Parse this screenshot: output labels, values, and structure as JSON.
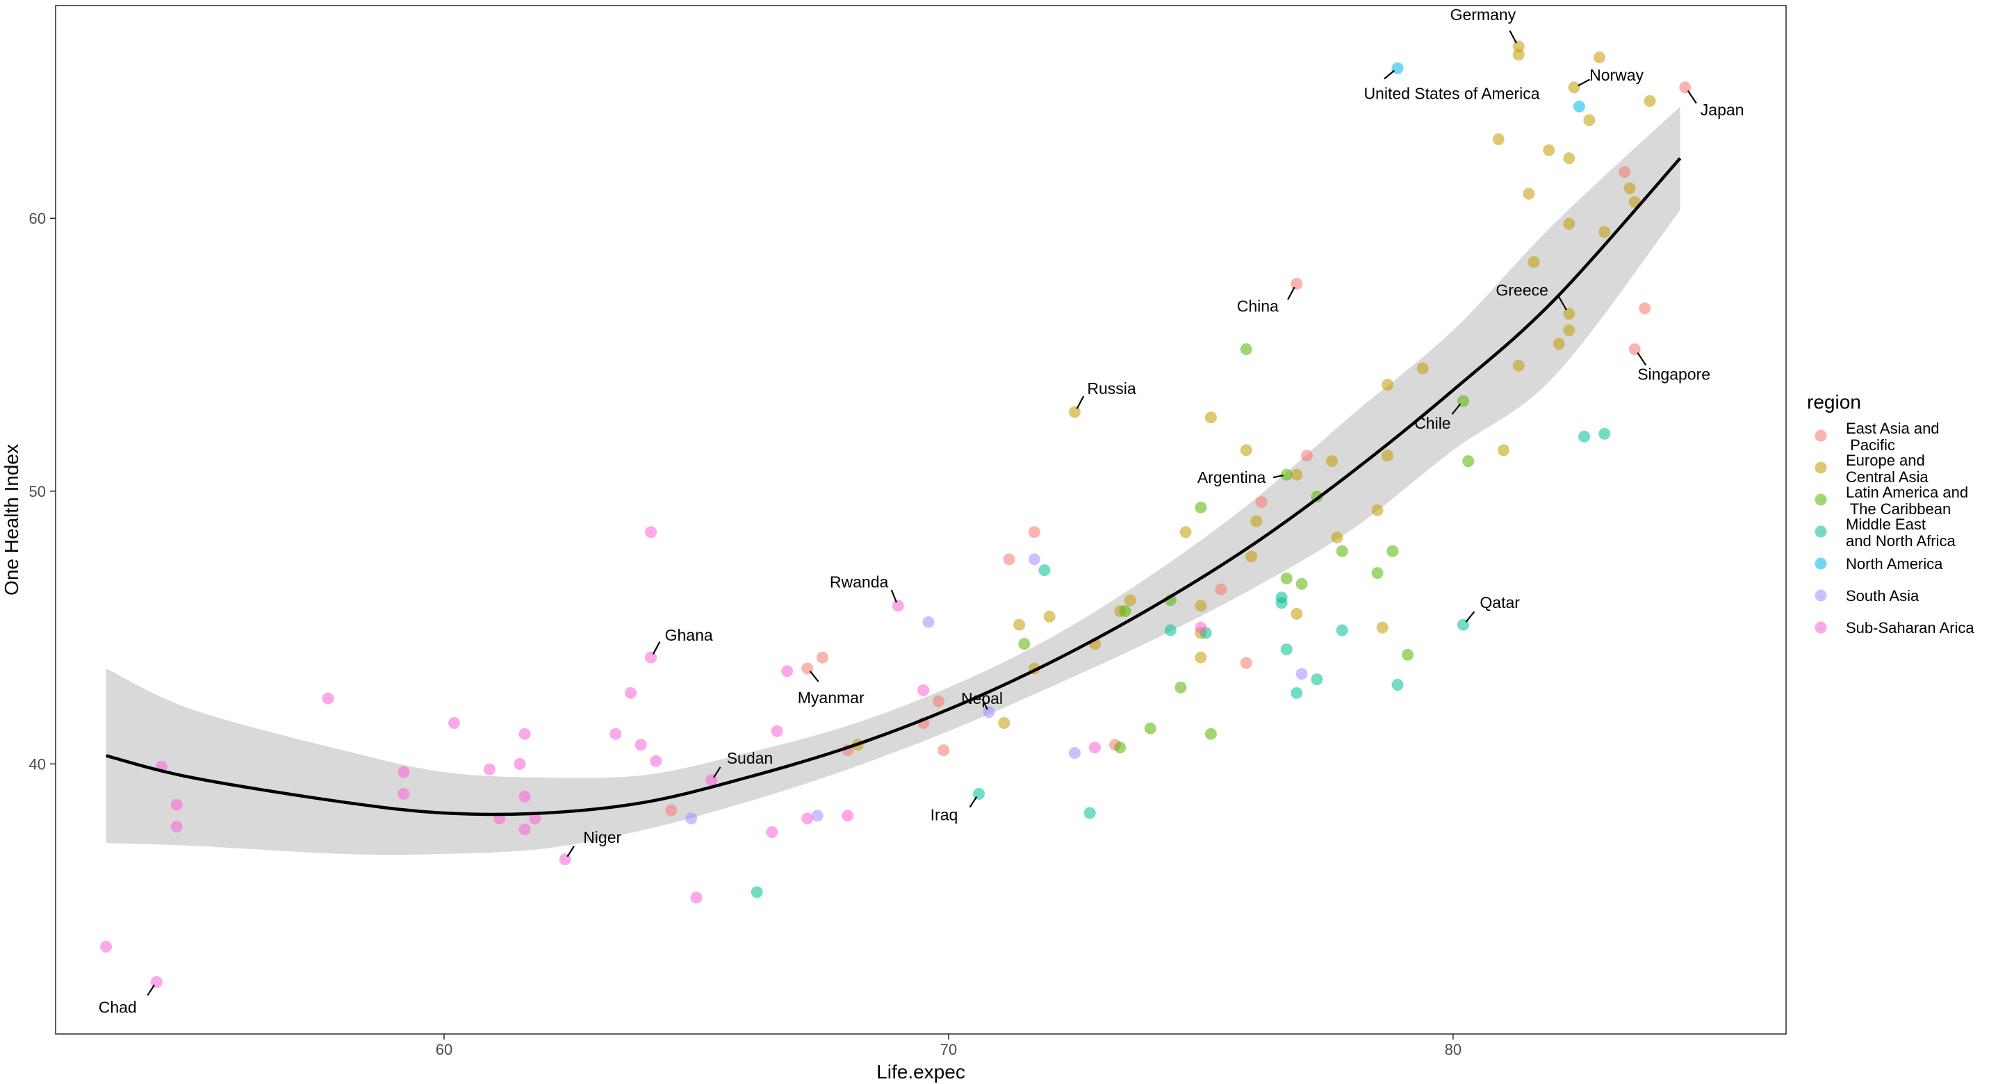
{
  "chart_data": {
    "type": "scatter",
    "title": "",
    "xlabel": "Life.expec",
    "ylabel": "One Health Index",
    "xlim": [
      52.3,
      86.6
    ],
    "ylim": [
      30.1,
      67.8
    ],
    "xticks": [
      60,
      70,
      80
    ],
    "yticks": [
      40,
      50,
      60
    ],
    "legend": {
      "title": "region",
      "placement": "right",
      "entries": [
        {
          "name": "East Asia and Pacific",
          "lines": [
            "East Asia and",
            " Pacific"
          ],
          "color": "#F8766D"
        },
        {
          "name": "Europe and Central Asia",
          "lines": [
            "Europe and",
            "Central Asia"
          ],
          "color": "#C49A00"
        },
        {
          "name": "Latin America and The Caribbean",
          "lines": [
            "Latin America and",
            " The Caribbean"
          ],
          "color": "#53B400"
        },
        {
          "name": "Middle East and North Africa",
          "lines": [
            "Middle East",
            "and North Africa"
          ],
          "color": "#00C094"
        },
        {
          "name": "North America",
          "lines": [
            "North America"
          ],
          "color": "#00B6EB"
        },
        {
          "name": "South Asia",
          "lines": [
            "South Asia"
          ],
          "color": "#A58AFF"
        },
        {
          "name": "Sub-Saharan Arica",
          "lines": [
            "Sub-Saharan Arica"
          ],
          "color": "#FB61D7"
        }
      ]
    },
    "trend": {
      "type": "quadratic-fit",
      "x": [
        53.3,
        55,
        58,
        60,
        62,
        64,
        66,
        68,
        70,
        72,
        74,
        76,
        78,
        80,
        82,
        84.5
      ],
      "y": [
        40.3,
        39.5,
        38.6,
        38.2,
        38.2,
        38.6,
        39.5,
        40.6,
        42.0,
        43.7,
        45.7,
        48.0,
        50.7,
        53.7,
        57.0,
        62.2
      ],
      "ci_lower": [
        37.1,
        37.0,
        36.7,
        36.7,
        36.9,
        37.6,
        38.6,
        39.8,
        41.2,
        42.8,
        44.5,
        46.4,
        48.6,
        51.5,
        54.2,
        60.3
      ],
      "ci_upper": [
        43.5,
        42.0,
        40.5,
        39.7,
        39.5,
        39.6,
        40.4,
        41.4,
        42.8,
        44.6,
        46.9,
        49.6,
        52.8,
        55.9,
        59.8,
        64.1
      ]
    },
    "series": [
      {
        "name": "East Asia and Pacific",
        "color": "#F8766D",
        "points": [
          {
            "x": 84.6,
            "y": 64.8,
            "label": "Japan"
          },
          {
            "x": 76.9,
            "y": 57.6,
            "label": "China"
          },
          {
            "x": 83.6,
            "y": 55.2,
            "label": "Singapore"
          },
          {
            "x": 83.4,
            "y": 61.7
          },
          {
            "x": 83.8,
            "y": 56.7
          },
          {
            "x": 77.1,
            "y": 51.3
          },
          {
            "x": 76.2,
            "y": 49.6
          },
          {
            "x": 71.7,
            "y": 48.5
          },
          {
            "x": 71.2,
            "y": 47.5
          },
          {
            "x": 75.4,
            "y": 46.4
          },
          {
            "x": 75.9,
            "y": 43.7
          },
          {
            "x": 67.5,
            "y": 43.9
          },
          {
            "x": 67.2,
            "y": 43.5,
            "label": "Myanmar"
          },
          {
            "x": 69.8,
            "y": 42.3
          },
          {
            "x": 69.5,
            "y": 41.5
          },
          {
            "x": 69.9,
            "y": 40.5
          },
          {
            "x": 68.0,
            "y": 40.5
          },
          {
            "x": 64.5,
            "y": 38.3
          },
          {
            "x": 73.3,
            "y": 40.7
          }
        ]
      },
      {
        "name": "Europe and Central Asia",
        "color": "#C49A00",
        "points": [
          {
            "x": 81.3,
            "y": 66.3,
            "label": "Germany"
          },
          {
            "x": 82.4,
            "y": 64.8,
            "label": "Norway"
          },
          {
            "x": 82.3,
            "y": 56.5,
            "label": "Greece"
          },
          {
            "x": 72.5,
            "y": 52.9,
            "label": "Russia"
          },
          {
            "x": 81.3,
            "y": 66.0
          },
          {
            "x": 82.9,
            "y": 65.9
          },
          {
            "x": 83.9,
            "y": 64.3
          },
          {
            "x": 82.7,
            "y": 63.6
          },
          {
            "x": 80.9,
            "y": 62.9
          },
          {
            "x": 81.9,
            "y": 62.5
          },
          {
            "x": 82.3,
            "y": 62.2
          },
          {
            "x": 83.5,
            "y": 61.1
          },
          {
            "x": 83.6,
            "y": 60.6
          },
          {
            "x": 81.5,
            "y": 60.9
          },
          {
            "x": 82.3,
            "y": 59.8
          },
          {
            "x": 83.0,
            "y": 59.5
          },
          {
            "x": 81.6,
            "y": 58.4
          },
          {
            "x": 82.3,
            "y": 55.9
          },
          {
            "x": 82.1,
            "y": 55.4
          },
          {
            "x": 81.3,
            "y": 54.6
          },
          {
            "x": 79.4,
            "y": 54.5
          },
          {
            "x": 78.7,
            "y": 53.9
          },
          {
            "x": 75.2,
            "y": 52.7
          },
          {
            "x": 75.9,
            "y": 51.5
          },
          {
            "x": 81.0,
            "y": 51.5
          },
          {
            "x": 78.7,
            "y": 51.3
          },
          {
            "x": 77.6,
            "y": 51.1
          },
          {
            "x": 76.9,
            "y": 50.6
          },
          {
            "x": 78.5,
            "y": 49.3
          },
          {
            "x": 76.1,
            "y": 48.9
          },
          {
            "x": 74.7,
            "y": 48.5
          },
          {
            "x": 77.7,
            "y": 48.3
          },
          {
            "x": 76.0,
            "y": 47.6
          },
          {
            "x": 73.6,
            "y": 46.0
          },
          {
            "x": 75.0,
            "y": 45.8
          },
          {
            "x": 73.4,
            "y": 45.6
          },
          {
            "x": 76.9,
            "y": 45.5
          },
          {
            "x": 72.0,
            "y": 45.4
          },
          {
            "x": 71.4,
            "y": 45.1
          },
          {
            "x": 78.6,
            "y": 45.0
          },
          {
            "x": 75.0,
            "y": 44.8
          },
          {
            "x": 72.9,
            "y": 44.4
          },
          {
            "x": 75.0,
            "y": 43.9
          },
          {
            "x": 71.7,
            "y": 43.5
          },
          {
            "x": 71.1,
            "y": 41.5
          },
          {
            "x": 68.2,
            "y": 40.7
          }
        ]
      },
      {
        "name": "Latin America and The Caribbean",
        "color": "#53B400",
        "points": [
          {
            "x": 80.2,
            "y": 53.3,
            "label": "Chile"
          },
          {
            "x": 76.7,
            "y": 50.6,
            "label": "Argentina"
          },
          {
            "x": 75.9,
            "y": 55.2
          },
          {
            "x": 80.3,
            "y": 51.1
          },
          {
            "x": 77.3,
            "y": 49.8
          },
          {
            "x": 75.0,
            "y": 49.4
          },
          {
            "x": 77.8,
            "y": 47.8
          },
          {
            "x": 78.8,
            "y": 47.8
          },
          {
            "x": 78.5,
            "y": 47.0
          },
          {
            "x": 76.7,
            "y": 46.8
          },
          {
            "x": 77.0,
            "y": 46.6
          },
          {
            "x": 74.4,
            "y": 46.0
          },
          {
            "x": 73.5,
            "y": 45.6
          },
          {
            "x": 71.5,
            "y": 44.4
          },
          {
            "x": 79.1,
            "y": 44.0
          },
          {
            "x": 74.6,
            "y": 42.8
          },
          {
            "x": 74.0,
            "y": 41.3
          },
          {
            "x": 75.2,
            "y": 41.1
          },
          {
            "x": 73.4,
            "y": 40.6
          }
        ]
      },
      {
        "name": "Middle East and North Africa",
        "color": "#00C094",
        "points": [
          {
            "x": 80.2,
            "y": 45.1,
            "label": "Qatar"
          },
          {
            "x": 70.6,
            "y": 38.9,
            "label": "Iraq"
          },
          {
            "x": 83.0,
            "y": 52.1
          },
          {
            "x": 82.6,
            "y": 52.0
          },
          {
            "x": 71.9,
            "y": 47.1
          },
          {
            "x": 76.6,
            "y": 46.1
          },
          {
            "x": 76.6,
            "y": 45.9
          },
          {
            "x": 77.8,
            "y": 44.9
          },
          {
            "x": 74.4,
            "y": 44.9
          },
          {
            "x": 75.1,
            "y": 44.8
          },
          {
            "x": 76.7,
            "y": 44.2
          },
          {
            "x": 77.3,
            "y": 43.1
          },
          {
            "x": 78.9,
            "y": 42.9
          },
          {
            "x": 76.9,
            "y": 42.6
          },
          {
            "x": 72.8,
            "y": 38.2
          },
          {
            "x": 66.2,
            "y": 35.3
          }
        ]
      },
      {
        "name": "North America",
        "color": "#00B6EB",
        "points": [
          {
            "x": 78.9,
            "y": 65.5,
            "label": "United States of America"
          },
          {
            "x": 82.5,
            "y": 64.1
          }
        ]
      },
      {
        "name": "South Asia",
        "color": "#A58AFF",
        "points": [
          {
            "x": 70.8,
            "y": 41.9,
            "label": "Nepal"
          },
          {
            "x": 71.7,
            "y": 47.5
          },
          {
            "x": 69.6,
            "y": 45.2
          },
          {
            "x": 77.0,
            "y": 43.3
          },
          {
            "x": 72.5,
            "y": 40.4
          },
          {
            "x": 67.4,
            "y": 38.1
          },
          {
            "x": 64.9,
            "y": 38.0
          }
        ]
      },
      {
        "name": "Sub-Saharan Arica",
        "color": "#FB61D7",
        "points": [
          {
            "x": 54.3,
            "y": 32.0,
            "label": "Chad"
          },
          {
            "x": 62.4,
            "y": 36.5,
            "label": "Niger"
          },
          {
            "x": 65.3,
            "y": 39.4,
            "label": "Sudan"
          },
          {
            "x": 64.1,
            "y": 43.9,
            "label": "Ghana"
          },
          {
            "x": 69.0,
            "y": 45.8,
            "label": "Rwanda"
          },
          {
            "x": 53.3,
            "y": 33.3
          },
          {
            "x": 54.4,
            "y": 39.9
          },
          {
            "x": 54.7,
            "y": 38.5
          },
          {
            "x": 54.7,
            "y": 37.7
          },
          {
            "x": 57.7,
            "y": 42.4
          },
          {
            "x": 59.2,
            "y": 39.7
          },
          {
            "x": 59.2,
            "y": 38.9
          },
          {
            "x": 60.2,
            "y": 41.5
          },
          {
            "x": 60.9,
            "y": 39.8
          },
          {
            "x": 61.1,
            "y": 38.0
          },
          {
            "x": 61.5,
            "y": 40.0
          },
          {
            "x": 61.6,
            "y": 41.1
          },
          {
            "x": 61.6,
            "y": 38.8
          },
          {
            "x": 61.6,
            "y": 37.6
          },
          {
            "x": 61.8,
            "y": 38.0
          },
          {
            "x": 63.4,
            "y": 41.1
          },
          {
            "x": 63.7,
            "y": 42.6
          },
          {
            "x": 63.9,
            "y": 40.7
          },
          {
            "x": 64.2,
            "y": 40.1
          },
          {
            "x": 64.1,
            "y": 48.5
          },
          {
            "x": 65.0,
            "y": 35.1
          },
          {
            "x": 66.5,
            "y": 37.5
          },
          {
            "x": 66.6,
            "y": 41.2
          },
          {
            "x": 66.8,
            "y": 43.4
          },
          {
            "x": 67.2,
            "y": 38.0
          },
          {
            "x": 68.0,
            "y": 38.1
          },
          {
            "x": 69.5,
            "y": 42.7
          },
          {
            "x": 72.9,
            "y": 40.6
          },
          {
            "x": 75.0,
            "y": 45.0
          }
        ]
      }
    ]
  }
}
